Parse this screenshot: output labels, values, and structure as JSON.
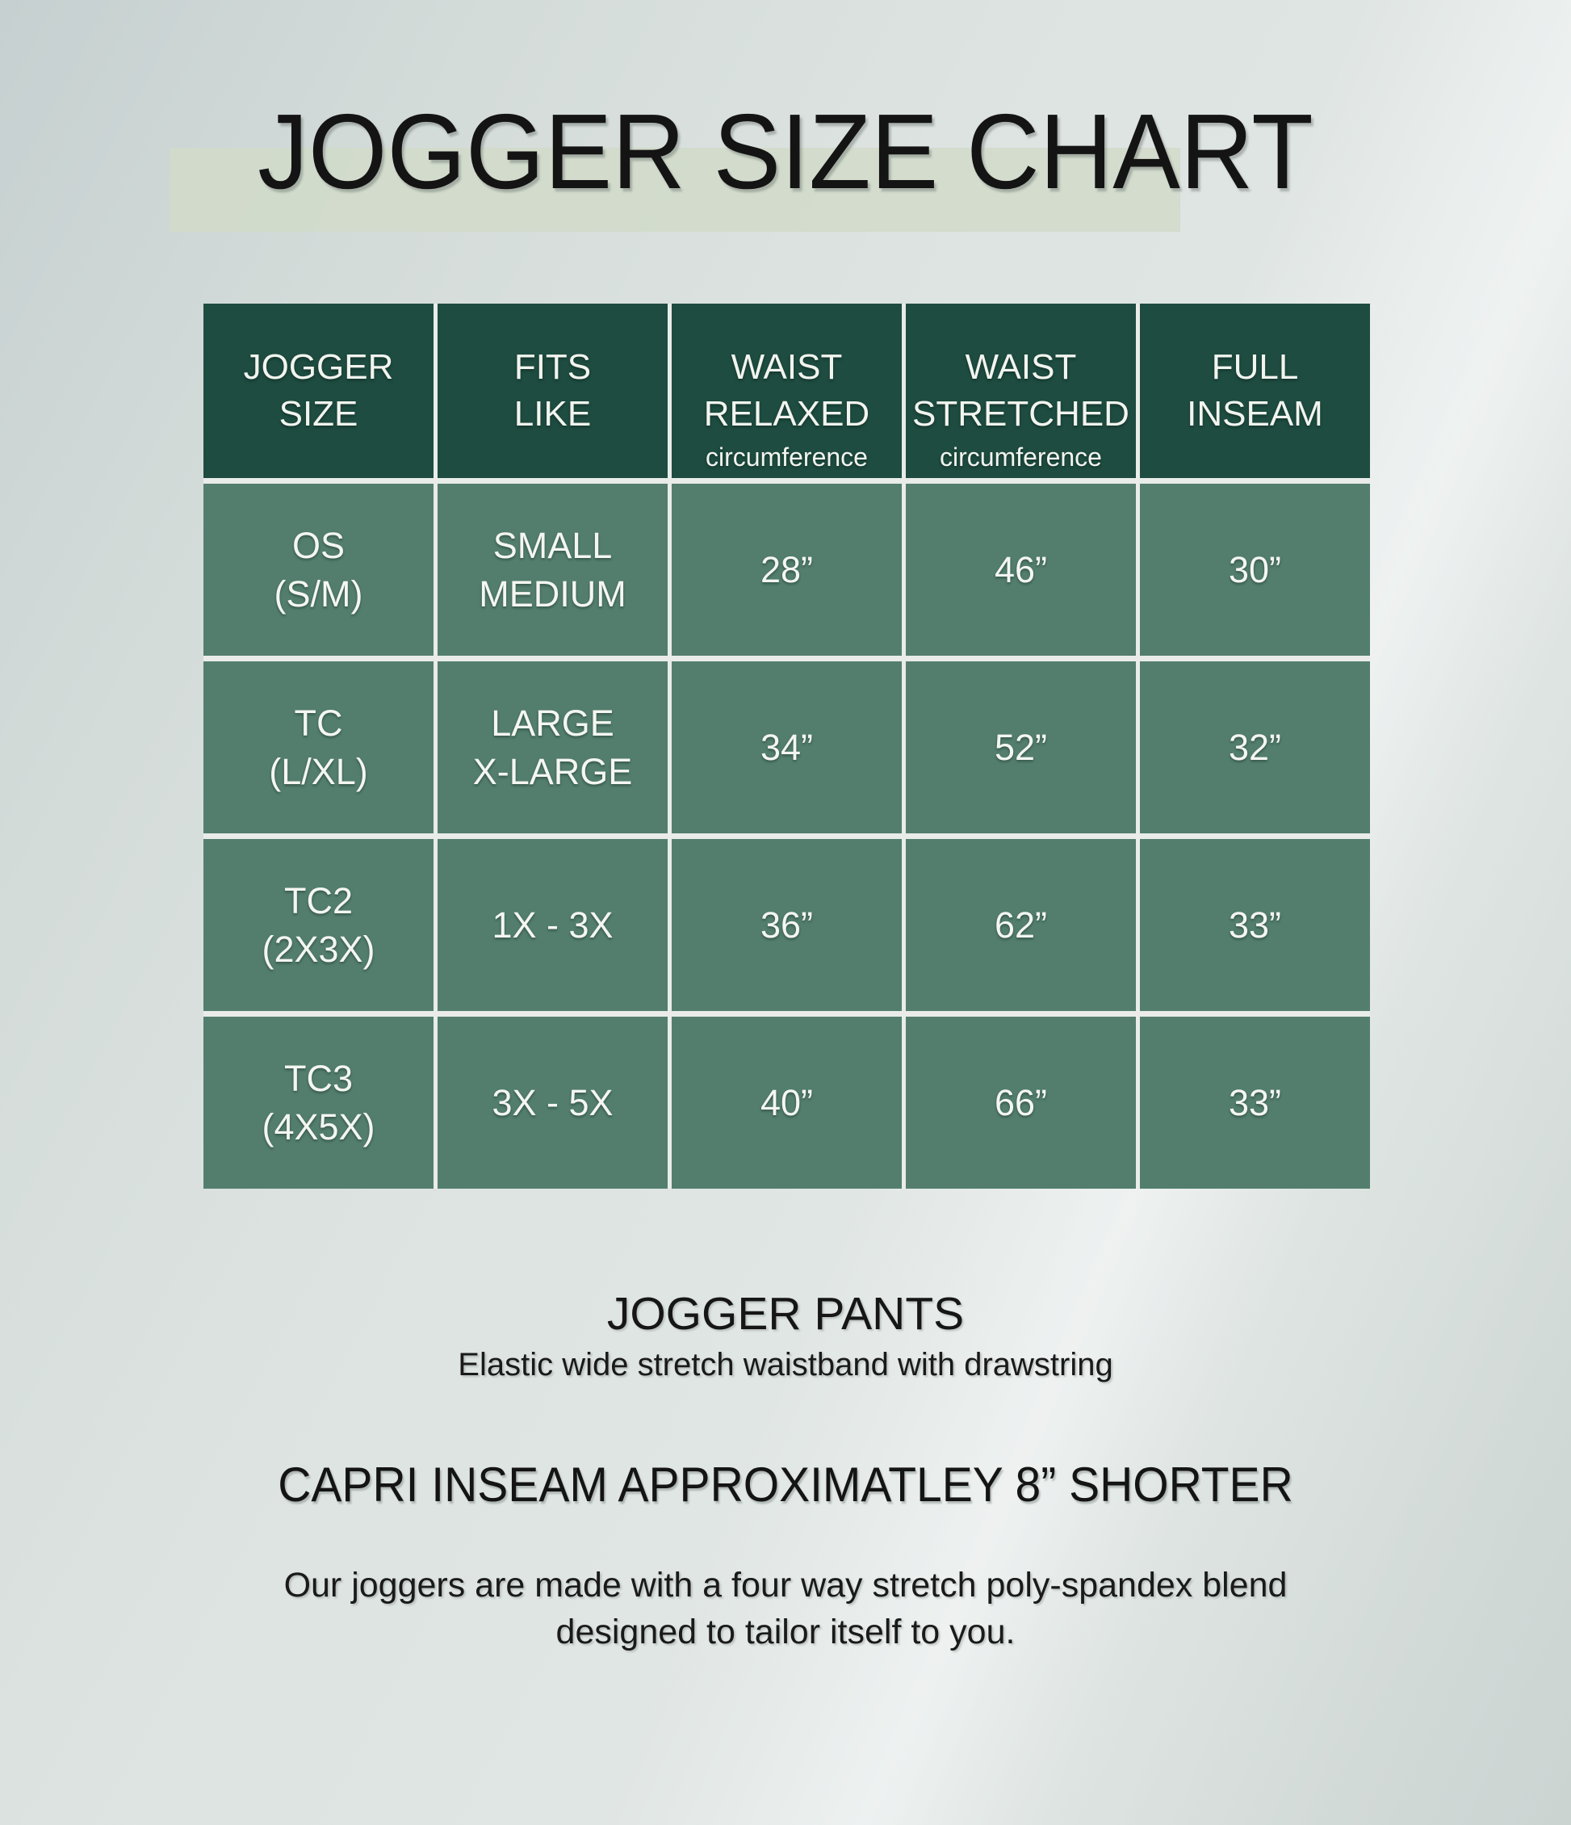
{
  "header": {
    "title": "JOGGER SIZE CHART"
  },
  "table": {
    "headers": [
      {
        "line1": "JOGGER",
        "line2": "SIZE",
        "sub": ""
      },
      {
        "line1": "FITS",
        "line2": "LIKE",
        "sub": ""
      },
      {
        "line1": "WAIST",
        "line2": "RELAXED",
        "sub": "circumference"
      },
      {
        "line1": "WAIST",
        "line2": "STRETCHED",
        "sub": "circumference"
      },
      {
        "line1": "FULL",
        "line2": "INSEAM",
        "sub": ""
      }
    ],
    "rows": [
      {
        "size": [
          "OS",
          "(S/M)"
        ],
        "fits": [
          "SMALL",
          "MEDIUM"
        ],
        "waist_relaxed": "28”",
        "waist_stretched": "46”",
        "full_inseam": "30”"
      },
      {
        "size": [
          "TC",
          "(L/XL)"
        ],
        "fits": [
          "LARGE",
          "X-LARGE"
        ],
        "waist_relaxed": "34”",
        "waist_stretched": "52”",
        "full_inseam": "32”"
      },
      {
        "size": [
          "TC2",
          "(2X3X)"
        ],
        "fits": [
          "1X - 3X"
        ],
        "waist_relaxed": "36”",
        "waist_stretched": "62”",
        "full_inseam": "33”"
      },
      {
        "size": [
          "TC3",
          "(4X5X)"
        ],
        "fits": [
          "3X - 5X"
        ],
        "waist_relaxed": "40”",
        "waist_stretched": "66”",
        "full_inseam": "33”"
      }
    ]
  },
  "footer": {
    "product_heading": "JOGGER PANTS",
    "product_subheading": "Elastic wide stretch waistband with drawstring",
    "capri_note": "CAPRI INSEAM APPROXIMATLEY 8” SHORTER",
    "description_line1": "Our joggers are made with a four way stretch poly-spandex blend",
    "description_line2": "designed to tailor itself to you."
  },
  "colors": {
    "header_green": "#1e4c40",
    "cell_green": "#537e6e",
    "grid_divider": "#e9ece9",
    "title_highlight": "#d1dbc9",
    "text_light": "#f4f6f1",
    "text_dark": "#141414",
    "background": "#dde3e1"
  },
  "chart_data": {
    "type": "table",
    "title": "JOGGER SIZE CHART",
    "columns": [
      "JOGGER SIZE",
      "FITS LIKE",
      "WAIST RELAXED (circumference)",
      "WAIST STRETCHED (circumference)",
      "FULL INSEAM"
    ],
    "rows": [
      [
        "OS (S/M)",
        "SMALL MEDIUM",
        "28”",
        "46”",
        "30”"
      ],
      [
        "TC (L/XL)",
        "LARGE X-LARGE",
        "34”",
        "52”",
        "32”"
      ],
      [
        "TC2 (2X3X)",
        "1X - 3X",
        "36”",
        "62”",
        "33”"
      ],
      [
        "TC3 (4X5X)",
        "3X - 5X",
        "40”",
        "66”",
        "33”"
      ]
    ],
    "notes": [
      "JOGGER PANTS — Elastic wide stretch waistband with drawstring",
      "CAPRI INSEAM APPROXIMATLEY 8” SHORTER",
      "Our joggers are made with a four way stretch poly-spandex blend designed to tailor itself to you."
    ]
  }
}
